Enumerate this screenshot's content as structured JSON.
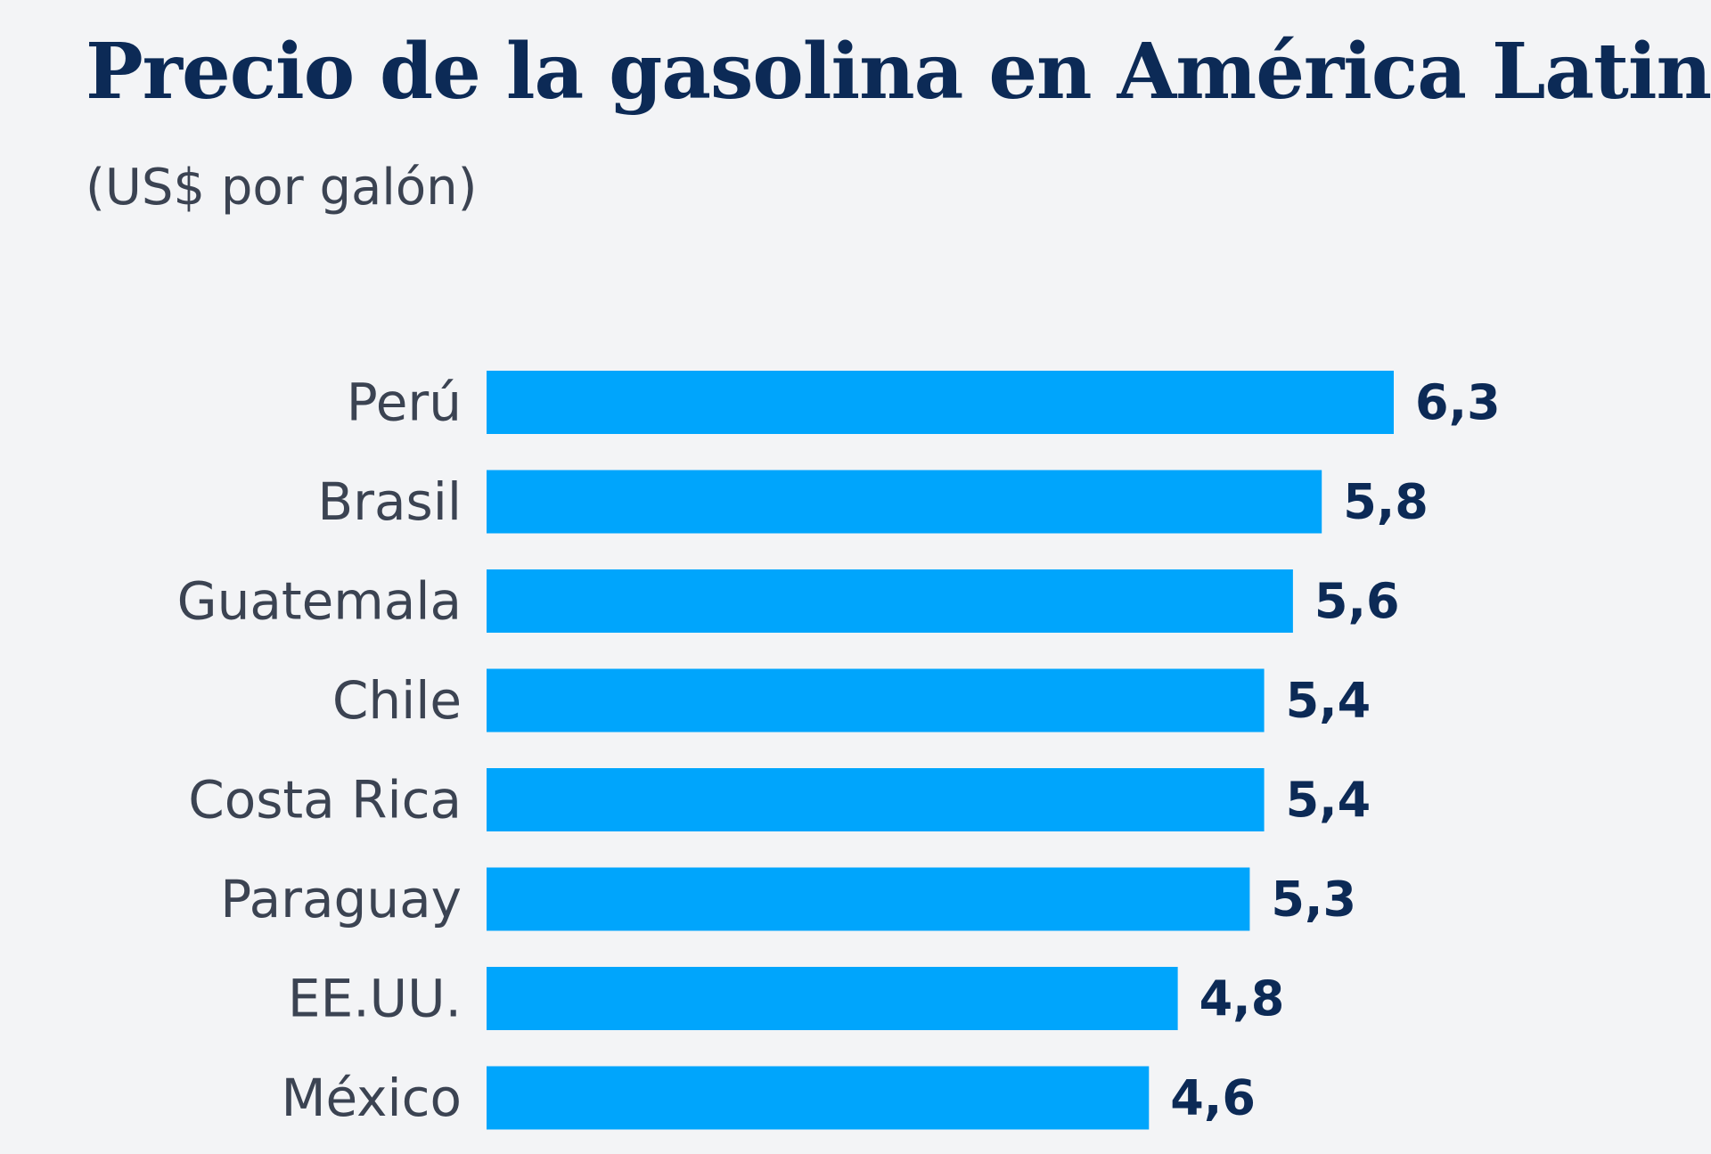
{
  "chart_data": {
    "type": "bar",
    "orientation": "horizontal",
    "title": "Precio de la gasolina en América Latina",
    "subtitle": "(US$ por galón)",
    "categories": [
      "Perú",
      "Brasil",
      "Guatemala",
      "Chile",
      "Costa Rica",
      "Paraguay",
      "EE.UU.",
      "México"
    ],
    "values": [
      6.3,
      5.8,
      5.6,
      5.4,
      5.4,
      5.3,
      4.8,
      4.6
    ],
    "value_labels": [
      "6,3",
      "5,8",
      "5,6",
      "5,4",
      "5,4",
      "5,3",
      "4,8",
      "4,6"
    ],
    "xlim": [
      0,
      6.3
    ],
    "grid": false,
    "legend": "none",
    "bar_color": "#00a5fc",
    "title_color": "#0c2a56",
    "label_color": "#3b4352"
  }
}
